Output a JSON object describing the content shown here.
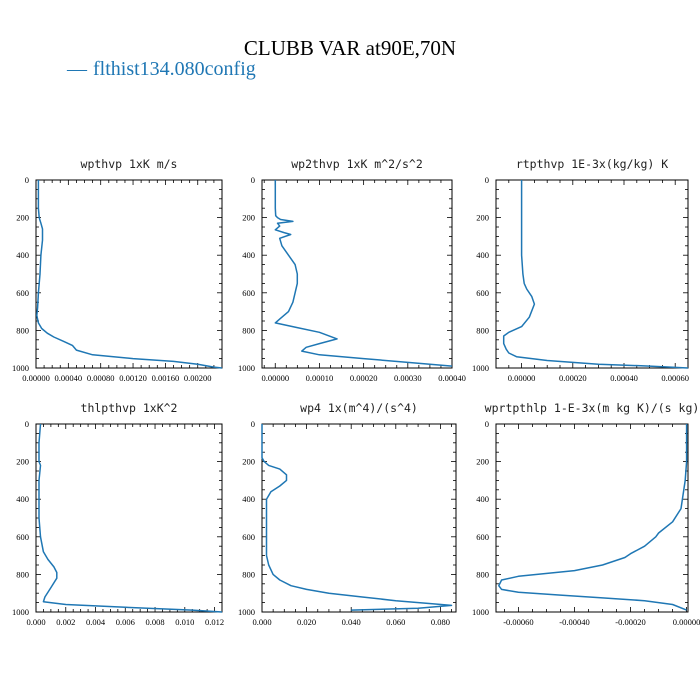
{
  "figure": {
    "title": "CLUBB VAR at90E,70N",
    "legend": {
      "label": "flthist134.080config",
      "marker": "—",
      "color": "#1f77b4"
    }
  },
  "chart_data": [
    {
      "type": "line",
      "title": "wpthvp   1xK m/s",
      "y_reversed": true,
      "ylim": [
        1000,
        0
      ],
      "yticks": [
        0,
        200,
        400,
        600,
        800,
        1000
      ],
      "xlim": [
        0,
        0.0023
      ],
      "xticks": [
        0.0,
        0.0004,
        0.0008,
        0.0012,
        0.0016,
        0.002
      ],
      "xtick_labels": [
        "0.00000",
        "0.00040",
        "0.00080",
        "0.00120",
        "0.00160",
        "0.00200"
      ],
      "series": [
        {
          "color": "#1f77b4",
          "x": [
            3e-05,
            3e-05,
            4e-05,
            5e-05,
            6e-05,
            8e-05,
            8e-05,
            6e-05,
            5e-05,
            3e-05,
            2e-05,
            1e-05,
            3e-05,
            7e-05,
            0.00014,
            0.00022,
            0.00035,
            0.00045,
            0.0005,
            0.0007,
            0.0012,
            0.0017,
            0.002,
            0.0022,
            0.0023
          ],
          "y": [
            0,
            150,
            200,
            215,
            230,
            260,
            320,
            400,
            500,
            600,
            680,
            720,
            760,
            790,
            815,
            835,
            860,
            880,
            905,
            930,
            950,
            965,
            980,
            995,
            1000
          ]
        }
      ]
    },
    {
      "type": "line",
      "title": "wp2thvp   1xK m^2/s^2",
      "y_reversed": true,
      "ylim": [
        1000,
        0
      ],
      "yticks": [
        0,
        200,
        400,
        600,
        800,
        1000
      ],
      "xlim": [
        -3e-05,
        0.0004
      ],
      "xticks": [
        0.0,
        0.0001,
        0.0002,
        0.0003,
        0.0004
      ],
      "xtick_labels": [
        "0.00000",
        "0.00010",
        "0.00020",
        "0.00030",
        "0.00040"
      ],
      "series": [
        {
          "color": "#1f77b4",
          "x": [
            0.0,
            0.0,
            1e-06,
            5e-06,
            1.2e-05,
            4e-05,
            5e-06,
            1e-05,
            0.0,
            2e-05,
            3.5e-05,
            1e-05,
            1.5e-05,
            3e-05,
            4.5e-05,
            5e-05,
            5e-05,
            4.5e-05,
            4e-05,
            3e-05,
            1e-05,
            0.0,
            5e-05,
            0.0001,
            0.00014,
            0.0001,
            7e-05,
            6e-05,
            0.0001,
            0.0002,
            0.0003,
            0.0004
          ],
          "y": [
            0,
            150,
            190,
            200,
            210,
            220,
            230,
            245,
            265,
            280,
            290,
            310,
            350,
            400,
            450,
            500,
            550,
            600,
            650,
            700,
            740,
            760,
            785,
            810,
            845,
            870,
            890,
            910,
            930,
            950,
            970,
            990
          ]
        }
      ]
    },
    {
      "type": "line",
      "title": "rtpthvp   1E-3x(kg/kg) K",
      "y_reversed": true,
      "ylim": [
        1000,
        0
      ],
      "yticks": [
        0,
        200,
        400,
        600,
        800,
        1000
      ],
      "xlim": [
        -0.0001,
        0.00065
      ],
      "xticks": [
        0.0,
        0.0002,
        0.0004,
        0.0006
      ],
      "xtick_labels": [
        "0.00000",
        "0.00020",
        "0.00040",
        "0.00060"
      ],
      "series": [
        {
          "color": "#1f77b4",
          "x": [
            0.0,
            0.0,
            0.0,
            5e-06,
            1e-05,
            2e-05,
            4e-05,
            5e-05,
            3e-05,
            0.0,
            -5e-05,
            -7e-05,
            -7e-05,
            -6e-05,
            -5e-05,
            -2e-05,
            0.0001,
            0.0003,
            0.0005,
            0.00065
          ],
          "y": [
            0,
            200,
            400,
            500,
            550,
            580,
            620,
            660,
            730,
            780,
            810,
            830,
            870,
            900,
            920,
            940,
            960,
            980,
            990,
            1000
          ]
        }
      ]
    },
    {
      "type": "line",
      "title": "thlpthvp   1xK^2",
      "y_reversed": true,
      "ylim": [
        1000,
        0
      ],
      "yticks": [
        0,
        200,
        400,
        600,
        800,
        1000
      ],
      "xlim": [
        0,
        0.0125
      ],
      "xticks": [
        0.0,
        0.002,
        0.004,
        0.006,
        0.008,
        0.01,
        0.012
      ],
      "xtick_labels": [
        "0.000",
        "0.002",
        "0.004",
        "0.006",
        "0.008",
        "0.010",
        "0.012"
      ],
      "series": [
        {
          "color": "#1f77b4",
          "x": [
            0.0003,
            0.0002,
            0.0002,
            0.0002,
            0.0003,
            0.0002,
            0.0002,
            0.0002,
            0.0003,
            0.0005,
            0.0008,
            0.0012,
            0.0014,
            0.0014,
            0.001,
            0.0006,
            0.0005,
            0.002,
            0.006,
            0.0105,
            0.0125
          ],
          "y": [
            0,
            100,
            150,
            200,
            220,
            300,
            400,
            500,
            600,
            680,
            720,
            760,
            790,
            820,
            870,
            920,
            945,
            960,
            975,
            990,
            1000
          ]
        }
      ]
    },
    {
      "type": "line",
      "title": "wp4   1x(m^4)/(s^4)",
      "y_reversed": true,
      "ylim": [
        1000,
        0
      ],
      "yticks": [
        0,
        200,
        400,
        600,
        800,
        1000
      ],
      "xlim": [
        0,
        0.087
      ],
      "xticks": [
        0.0,
        0.02,
        0.04,
        0.06,
        0.08
      ],
      "xtick_labels": [
        "0.000",
        "0.020",
        "0.040",
        "0.060",
        "0.080"
      ],
      "series": [
        {
          "color": "#1f77b4",
          "x": [
            0.0,
            0.0,
            0.001,
            0.003,
            0.008,
            0.011,
            0.011,
            0.008,
            0.004,
            0.002,
            0.002,
            0.002,
            0.002,
            0.002,
            0.003,
            0.005,
            0.008,
            0.013,
            0.02,
            0.03,
            0.045,
            0.06,
            0.075,
            0.085,
            0.07,
            0.04
          ],
          "y": [
            0,
            180,
            200,
            220,
            240,
            270,
            300,
            330,
            360,
            400,
            450,
            500,
            600,
            700,
            750,
            800,
            830,
            860,
            880,
            900,
            920,
            940,
            955,
            965,
            980,
            990
          ]
        }
      ]
    },
    {
      "type": "line",
      "title": "wprtpthlp   1-E-3x(m kg K)/(s kg)",
      "y_reversed": true,
      "ylim": [
        1000,
        0
      ],
      "yticks": [
        0,
        200,
        400,
        600,
        800,
        1000
      ],
      "xlim": [
        -0.00068,
        5e-06
      ],
      "xticks": [
        -0.0006,
        -0.0004,
        -0.0002,
        0.0
      ],
      "xtick_labels": [
        "-0.00060",
        "-0.00040",
        "-0.00020",
        "0.00000"
      ],
      "series": [
        {
          "color": "#1f77b4",
          "x": [
            0.0,
            0.0,
            -5e-06,
            -2e-05,
            -5e-05,
            -0.0001,
            -0.00011,
            -0.00015,
            -0.0002,
            -0.00022,
            -0.0003,
            -0.0004,
            -0.0006,
            -0.00066,
            -0.00067,
            -0.00066,
            -0.0006,
            -0.00045,
            -0.0003,
            -0.00015,
            -5e-05,
            0.0
          ],
          "y": [
            0,
            200,
            300,
            450,
            520,
            580,
            600,
            650,
            690,
            710,
            750,
            780,
            810,
            830,
            860,
            880,
            895,
            910,
            925,
            940,
            960,
            990
          ]
        }
      ]
    }
  ]
}
